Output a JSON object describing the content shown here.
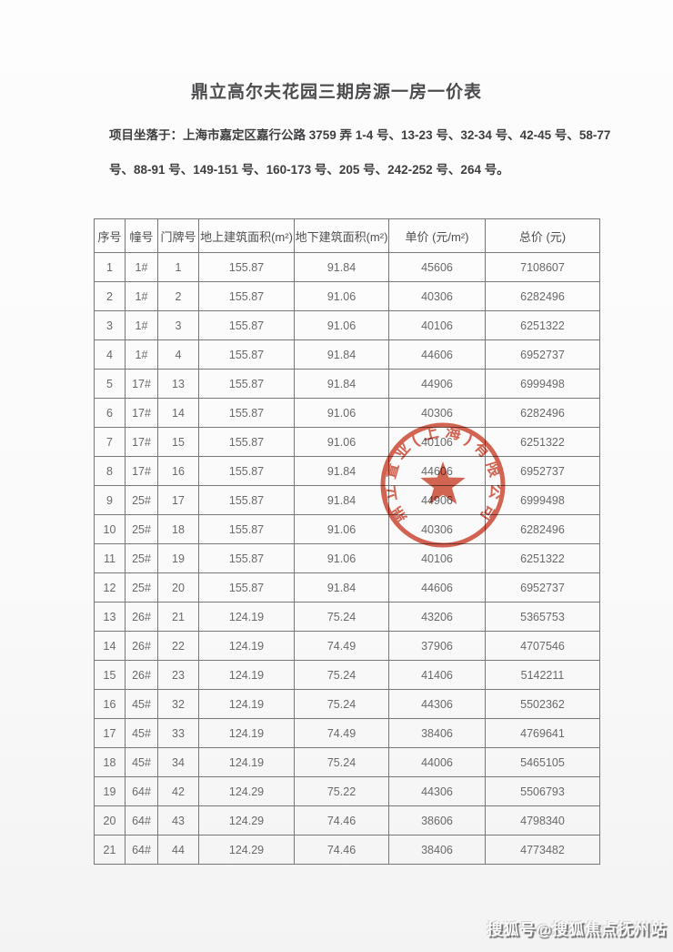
{
  "page": {
    "title": "鼎立高尔夫花园三期房源一房一价表",
    "address_lines": [
      "项目坐落于：上海市嘉定区嘉行公路 3759 弄 1-4 号、13-23 号、32-34 号、42-45 号、58-77",
      "号、88-91 号、149-151 号、160-173 号、205 号、242-252 号、264 号。"
    ]
  },
  "table": {
    "headers": [
      "序号",
      "幢号",
      "门牌号",
      "地上建筑面积(m²)",
      "地下建筑面积(m²)",
      "单价 (元/m²)",
      "总价 (元)"
    ],
    "rows": [
      [
        "1",
        "1#",
        "1",
        "155.87",
        "91.84",
        "45606",
        "7108607"
      ],
      [
        "2",
        "1#",
        "2",
        "155.87",
        "91.06",
        "40306",
        "6282496"
      ],
      [
        "3",
        "1#",
        "3",
        "155.87",
        "91.06",
        "40106",
        "6251322"
      ],
      [
        "4",
        "1#",
        "4",
        "155.87",
        "91.84",
        "44606",
        "6952737"
      ],
      [
        "5",
        "17#",
        "13",
        "155.87",
        "91.84",
        "44906",
        "6999498"
      ],
      [
        "6",
        "17#",
        "14",
        "155.87",
        "91.06",
        "40306",
        "6282496"
      ],
      [
        "7",
        "17#",
        "15",
        "155.87",
        "91.06",
        "40106",
        "6251322"
      ],
      [
        "8",
        "17#",
        "16",
        "155.87",
        "91.84",
        "44606",
        "6952737"
      ],
      [
        "9",
        "25#",
        "17",
        "155.87",
        "91.84",
        "44906",
        "6999498"
      ],
      [
        "10",
        "25#",
        "18",
        "155.87",
        "91.06",
        "40306",
        "6282496"
      ],
      [
        "11",
        "25#",
        "19",
        "155.87",
        "91.06",
        "40106",
        "6251322"
      ],
      [
        "12",
        "25#",
        "20",
        "155.87",
        "91.84",
        "44606",
        "6952737"
      ],
      [
        "13",
        "26#",
        "21",
        "124.19",
        "75.24",
        "43206",
        "5365753"
      ],
      [
        "14",
        "26#",
        "22",
        "124.19",
        "74.49",
        "37906",
        "4707546"
      ],
      [
        "15",
        "26#",
        "23",
        "124.19",
        "75.24",
        "41406",
        "5142211"
      ],
      [
        "16",
        "45#",
        "32",
        "124.19",
        "75.24",
        "44306",
        "5502362"
      ],
      [
        "17",
        "45#",
        "33",
        "124.19",
        "74.49",
        "38406",
        "4769641"
      ],
      [
        "18",
        "45#",
        "34",
        "124.19",
        "75.24",
        "44006",
        "5465105"
      ],
      [
        "19",
        "64#",
        "42",
        "124.29",
        "75.22",
        "44306",
        "5506793"
      ],
      [
        "20",
        "64#",
        "43",
        "124.29",
        "74.46",
        "38606",
        "4798340"
      ],
      [
        "21",
        "64#",
        "44",
        "124.29",
        "74.46",
        "38406",
        "4773482"
      ]
    ]
  },
  "stamp": {
    "company_text": "鼎立置业(上海)有限公司",
    "color": "#d04a35",
    "icon": "red-star-icon"
  },
  "watermark": {
    "text": "搜狐号@搜狐焦点抚州站"
  }
}
